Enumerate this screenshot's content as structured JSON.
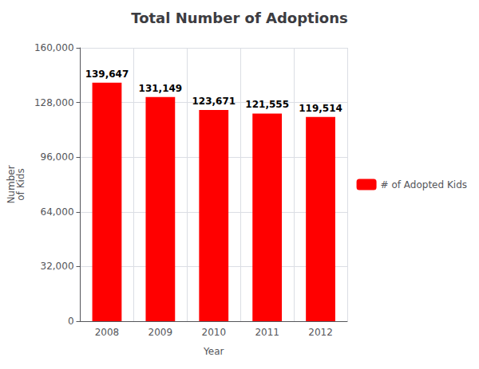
{
  "chart_data": {
    "type": "bar",
    "title": "Total Number of Adoptions",
    "xlabel": "Year",
    "ylabel": "Number\nof Kids",
    "categories": [
      "2008",
      "2009",
      "2010",
      "2011",
      "2012"
    ],
    "series": [
      {
        "name": "# of Adopted Kids",
        "color": "#ff0000",
        "values": [
          139647,
          131149,
          123671,
          121555,
          119514
        ],
        "value_labels": [
          "139,647",
          "131,149",
          "123,671",
          "121,555",
          "119,514"
        ]
      }
    ],
    "ylim": [
      0,
      160000
    ],
    "yticks": [
      0,
      {
        "value": 32000,
        "label": "32,000"
      },
      {
        "value": 64000,
        "label": "64,000"
      },
      {
        "value": 96000,
        "label": "96,000"
      },
      {
        "value": 128000,
        "label": "128,000"
      },
      {
        "value": 160000,
        "label": "160,000"
      }
    ],
    "grid": true,
    "legend": "right",
    "data_labels": true
  }
}
